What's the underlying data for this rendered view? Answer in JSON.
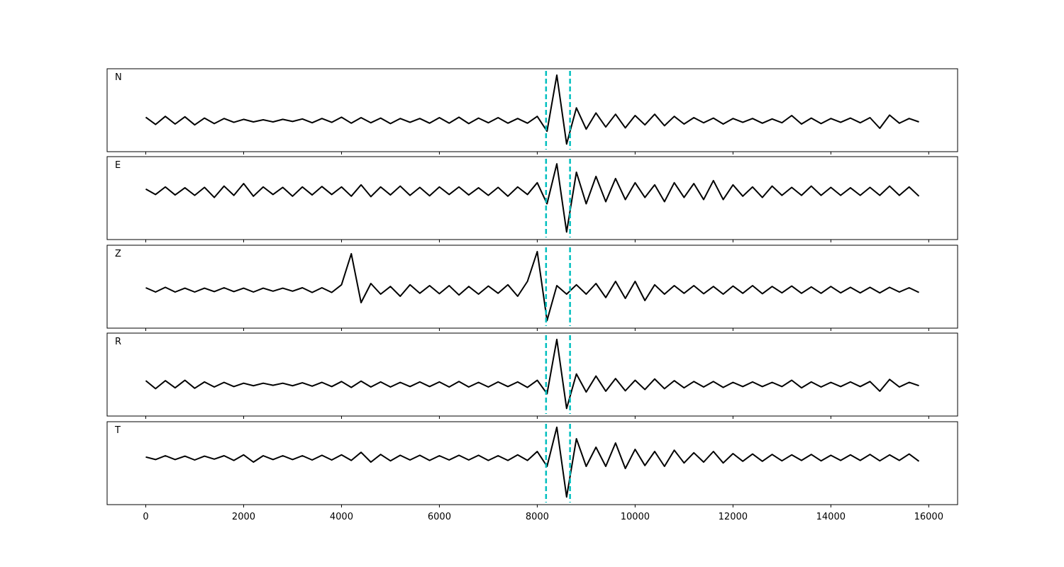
{
  "chart_data": {
    "type": "line",
    "x": [
      0,
      200,
      400,
      600,
      800,
      1000,
      1200,
      1400,
      1600,
      1800,
      2000,
      2200,
      2400,
      2600,
      2800,
      3000,
      3200,
      3400,
      3600,
      3800,
      4000,
      4200,
      4400,
      4600,
      4800,
      5000,
      5200,
      5400,
      5600,
      5800,
      6000,
      6200,
      6400,
      6600,
      6800,
      7000,
      7200,
      7400,
      7600,
      7800,
      8000,
      8200,
      8400,
      8600,
      8800,
      9000,
      9200,
      9400,
      9600,
      9800,
      10000,
      10200,
      10400,
      10600,
      10800,
      11000,
      11200,
      11400,
      11600,
      11800,
      12000,
      12200,
      12400,
      12600,
      12800,
      13000,
      13200,
      13400,
      13600,
      13800,
      14000,
      14200,
      14400,
      14600,
      14800,
      15000,
      15200,
      15400,
      15600,
      15800
    ],
    "xlim": [
      -790,
      16590
    ],
    "xticks": [
      0,
      2000,
      4000,
      6000,
      8000,
      10000,
      12000,
      14000,
      16000
    ],
    "vlines": [
      8180,
      8670
    ],
    "vline_color": "#00bfbf",
    "line_color": "#000000",
    "panels": [
      {
        "label": "N",
        "ylim": [
          -0.73,
          1.22
        ],
        "values": [
          0.08,
          -0.09,
          0.1,
          -0.08,
          0.09,
          -0.1,
          0.06,
          -0.07,
          0.05,
          -0.04,
          0.03,
          -0.03,
          0.02,
          -0.03,
          0.03,
          -0.02,
          0.04,
          -0.05,
          0.05,
          -0.04,
          0.08,
          -0.06,
          0.07,
          -0.05,
          0.06,
          -0.07,
          0.05,
          -0.04,
          0.05,
          -0.06,
          0.07,
          -0.06,
          0.08,
          -0.07,
          0.06,
          -0.05,
          0.07,
          -0.06,
          0.05,
          -0.06,
          0.1,
          -0.25,
          1.07,
          -0.55,
          0.3,
          -0.2,
          0.18,
          -0.15,
          0.15,
          -0.17,
          0.12,
          -0.1,
          0.15,
          -0.12,
          0.1,
          -0.08,
          0.07,
          -0.05,
          0.06,
          -0.08,
          0.05,
          -0.04,
          0.05,
          -0.06,
          0.04,
          -0.05,
          0.12,
          -0.08,
          0.06,
          -0.07,
          0.05,
          -0.04,
          0.06,
          -0.05,
          0.07,
          -0.18,
          0.13,
          -0.06,
          0.05,
          -0.03
        ]
      },
      {
        "label": "E",
        "ylim": [
          -1.15,
          0.82
        ],
        "values": [
          0.05,
          -0.08,
          0.1,
          -0.09,
          0.08,
          -0.1,
          0.09,
          -0.15,
          0.12,
          -0.1,
          0.18,
          -0.12,
          0.1,
          -0.08,
          0.09,
          -0.12,
          0.1,
          -0.09,
          0.11,
          -0.08,
          0.1,
          -0.12,
          0.15,
          -0.13,
          0.1,
          -0.09,
          0.12,
          -0.1,
          0.09,
          -0.11,
          0.1,
          -0.08,
          0.1,
          -0.09,
          0.08,
          -0.1,
          0.09,
          -0.12,
          0.1,
          -0.08,
          0.2,
          -0.3,
          0.65,
          -0.97,
          0.45,
          -0.3,
          0.35,
          -0.25,
          0.3,
          -0.2,
          0.2,
          -0.15,
          0.15,
          -0.25,
          0.2,
          -0.15,
          0.18,
          -0.2,
          0.25,
          -0.2,
          0.15,
          -0.12,
          0.1,
          -0.15,
          0.12,
          -0.1,
          0.09,
          -0.1,
          0.12,
          -0.1,
          0.09,
          -0.1,
          0.08,
          -0.1,
          0.09,
          -0.1,
          0.12,
          -0.1,
          0.1,
          -0.12
        ]
      },
      {
        "label": "Z",
        "ylim": [
          -0.9,
          1.05
        ],
        "values": [
          0.05,
          -0.05,
          0.06,
          -0.05,
          0.04,
          -0.05,
          0.04,
          -0.04,
          0.05,
          -0.04,
          0.04,
          -0.05,
          0.04,
          -0.03,
          0.04,
          -0.03,
          0.05,
          -0.06,
          0.05,
          -0.06,
          0.12,
          0.85,
          -0.3,
          0.15,
          -0.1,
          0.08,
          -0.15,
          0.12,
          -0.08,
          0.1,
          -0.09,
          0.1,
          -0.12,
          0.08,
          -0.1,
          0.09,
          -0.08,
          0.12,
          -0.15,
          0.2,
          0.9,
          -0.72,
          0.1,
          -0.1,
          0.12,
          -0.1,
          0.15,
          -0.18,
          0.2,
          -0.2,
          0.2,
          -0.25,
          0.12,
          -0.1,
          0.1,
          -0.08,
          0.1,
          -0.09,
          0.08,
          -0.1,
          0.09,
          -0.08,
          0.1,
          -0.09,
          0.08,
          -0.07,
          0.09,
          -0.08,
          0.07,
          -0.08,
          0.08,
          -0.07,
          0.06,
          -0.07,
          0.06,
          -0.07,
          0.06,
          -0.05,
          0.05,
          -0.06
        ]
      },
      {
        "label": "R",
        "ylim": [
          -0.75,
          1.22
        ],
        "values": [
          0.09,
          -0.1,
          0.09,
          -0.08,
          0.1,
          -0.09,
          0.06,
          -0.06,
          0.05,
          -0.05,
          0.03,
          -0.03,
          0.03,
          -0.02,
          0.03,
          -0.03,
          0.04,
          -0.04,
          0.05,
          -0.05,
          0.07,
          -0.07,
          0.08,
          -0.06,
          0.06,
          -0.06,
          0.05,
          -0.05,
          0.06,
          -0.05,
          0.06,
          -0.06,
          0.07,
          -0.06,
          0.05,
          -0.06,
          0.06,
          -0.05,
          0.06,
          -0.07,
          0.1,
          -0.22,
          1.07,
          -0.57,
          0.25,
          -0.18,
          0.2,
          -0.16,
          0.14,
          -0.15,
          0.1,
          -0.12,
          0.13,
          -0.1,
          0.09,
          -0.08,
          0.07,
          -0.06,
          0.07,
          -0.07,
          0.05,
          -0.05,
          0.06,
          -0.05,
          0.05,
          -0.05,
          0.1,
          -0.08,
          0.06,
          -0.06,
          0.05,
          -0.05,
          0.06,
          -0.05,
          0.07,
          -0.16,
          0.12,
          -0.06,
          0.05,
          -0.03
        ]
      },
      {
        "label": "T",
        "ylim": [
          -1.1,
          0.85
        ],
        "values": [
          0.02,
          -0.04,
          0.05,
          -0.04,
          0.04,
          -0.05,
          0.04,
          -0.03,
          0.05,
          -0.06,
          0.07,
          -0.1,
          0.05,
          -0.04,
          0.05,
          -0.04,
          0.05,
          -0.05,
          0.06,
          -0.05,
          0.07,
          -0.06,
          0.13,
          -0.1,
          0.08,
          -0.07,
          0.06,
          -0.05,
          0.06,
          -0.06,
          0.05,
          -0.05,
          0.06,
          -0.05,
          0.06,
          -0.06,
          0.05,
          -0.06,
          0.07,
          -0.06,
          0.15,
          -0.2,
          0.72,
          -0.92,
          0.45,
          -0.2,
          0.25,
          -0.2,
          0.35,
          -0.25,
          0.2,
          -0.18,
          0.15,
          -0.2,
          0.18,
          -0.12,
          0.12,
          -0.1,
          0.15,
          -0.12,
          0.1,
          -0.08,
          0.09,
          -0.08,
          0.08,
          -0.07,
          0.07,
          -0.06,
          0.08,
          -0.07,
          0.06,
          -0.06,
          0.07,
          -0.06,
          0.08,
          -0.07,
          0.07,
          -0.06,
          0.09,
          -0.08
        ]
      }
    ]
  }
}
